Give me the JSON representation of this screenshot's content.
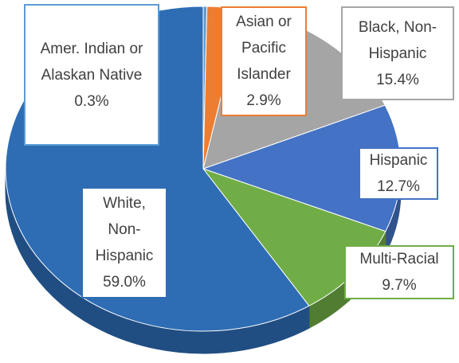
{
  "chart_data": {
    "type": "pie",
    "categories": [
      "Amer. Indian or Alaskan Native",
      "Asian or Pacific Islander",
      "Black, Non-Hispanic",
      "Hispanic",
      "Multi-Racial",
      "White, Non-Hispanic"
    ],
    "values": [
      0.3,
      2.9,
      15.4,
      12.7,
      9.7,
      59.0
    ],
    "value_labels": [
      "0.3%",
      "2.9%",
      "15.4%",
      "12.7%",
      "9.7%",
      "59.0%"
    ],
    "colors": [
      "#5b9bd5",
      "#ed7d31",
      "#a5a5a5",
      "#4472c4",
      "#70ad47",
      "#2e6db4"
    ]
  }
}
